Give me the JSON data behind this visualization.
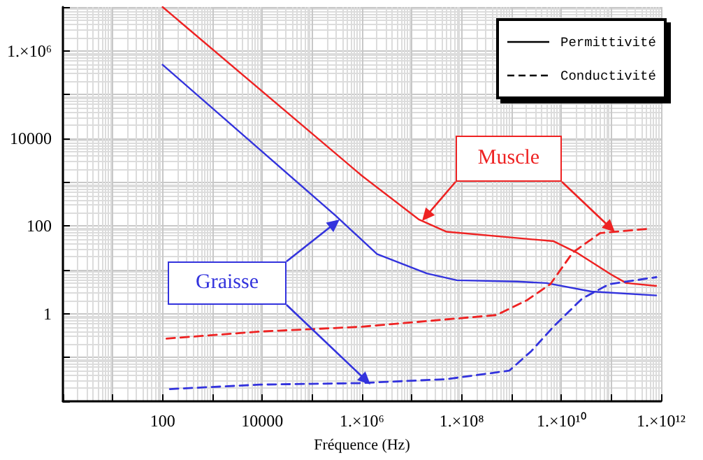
{
  "chart_data": {
    "type": "line",
    "xlabel": "Fréquence (Hz)",
    "log": "xy",
    "grid": true,
    "marker": "none",
    "xlim": [
      1,
      1000000000000.0
    ],
    "ylim": [
      0.01,
      10000000.0
    ],
    "xticks": [
      {
        "value": 1,
        "label": null
      },
      {
        "value": 10,
        "label": null
      },
      100,
      {
        "value": 1000,
        "label": null
      },
      10000,
      {
        "value": 100000,
        "label": null
      },
      {
        "value": 1000000,
        "label": "1.×10⁶"
      },
      {
        "value": 10000000,
        "label": null
      },
      {
        "value": 100000000,
        "label": "1.×10⁸"
      },
      {
        "value": 1000000000,
        "label": null
      },
      {
        "value": 10000000000,
        "label": "1.×10¹⁰"
      },
      {
        "value": 100000000000,
        "label": null
      },
      {
        "value": 1000000000000,
        "label": "1.×10¹²"
      }
    ],
    "yticks": [
      {
        "value": 0.01,
        "label": null
      },
      {
        "value": 0.1,
        "label": null
      },
      1,
      {
        "value": 10,
        "label": null
      },
      100,
      {
        "value": 1000,
        "label": null
      },
      10000,
      {
        "value": 100000,
        "label": null
      },
      {
        "value": 1000000,
        "label": "1.×10⁶"
      },
      {
        "value": 10000000,
        "label": null
      }
    ],
    "series": [
      {
        "color": "#ee2222",
        "line_style": "solid",
        "x": [
          100,
          1000000,
          14000000,
          50000000,
          2000000000,
          7000000000,
          20000000000,
          100000000000,
          200000000000,
          800000000000
        ],
        "values": [
          10000000,
          1400,
          140,
          74,
          51,
          45,
          25,
          7.8,
          5,
          4.3
        ]
      },
      {
        "color": "#3333dd",
        "line_style": "solid",
        "x": [
          100,
          300000,
          2000000,
          20000000,
          80000000,
          1300000000,
          5000000000,
          40000000000,
          800000000000
        ],
        "values": [
          480000,
          170,
          23,
          8.3,
          5.8,
          5.4,
          5,
          3.2,
          2.6
        ]
      },
      {
        "color": "#ee2222",
        "line_style": "dashed",
        "x": [
          120,
          9000,
          900000,
          6000000,
          500000000,
          2000000000,
          6000000000,
          17000000000,
          60000000000,
          600000000000
        ],
        "values": [
          0.27,
          0.39,
          0.5,
          0.6,
          0.93,
          2,
          4.7,
          25,
          69,
          87
        ]
      },
      {
        "color": "#3333dd",
        "line_style": "dashed",
        "x": [
          140,
          9000,
          900000,
          50000000,
          900000000,
          2500000000,
          7000000000,
          26000000000,
          90000000000,
          800000000000
        ],
        "values": [
          0.019,
          0.024,
          0.026,
          0.032,
          0.05,
          0.14,
          0.51,
          2.2,
          4.7,
          6.8
        ]
      }
    ],
    "annotations": [
      "Permittivité",
      "Conductivité",
      "Muscle",
      "Graisse"
    ]
  }
}
